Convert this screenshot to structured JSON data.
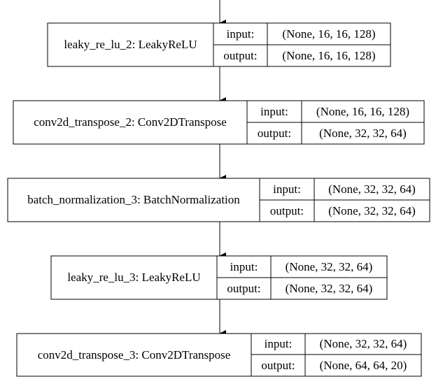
{
  "layers": [
    {
      "name": "leaky_re_lu_2: LeakyReLU",
      "input_label": "input:",
      "output_label": "output:",
      "input_shape": "(None, 16, 16, 128)",
      "output_shape": "(None, 16, 16, 128)"
    },
    {
      "name": "conv2d_transpose_2: Conv2DTranspose",
      "input_label": "input:",
      "output_label": "output:",
      "input_shape": "(None, 16, 16, 128)",
      "output_shape": "(None, 32, 32, 64)"
    },
    {
      "name": "batch_normalization_3: BatchNormalization",
      "input_label": "input:",
      "output_label": "output:",
      "input_shape": "(None, 32, 32, 64)",
      "output_shape": "(None, 32, 32, 64)"
    },
    {
      "name": "leaky_re_lu_3: LeakyReLU",
      "input_label": "input:",
      "output_label": "output:",
      "input_shape": "(None, 32, 32, 64)",
      "output_shape": "(None, 32, 32, 64)"
    },
    {
      "name": "conv2d_transpose_3: Conv2DTranspose",
      "input_label": "input:",
      "output_label": "output:",
      "input_shape": "(None, 32, 32, 64)",
      "output_shape": "(None, 64, 64, 20)"
    }
  ]
}
